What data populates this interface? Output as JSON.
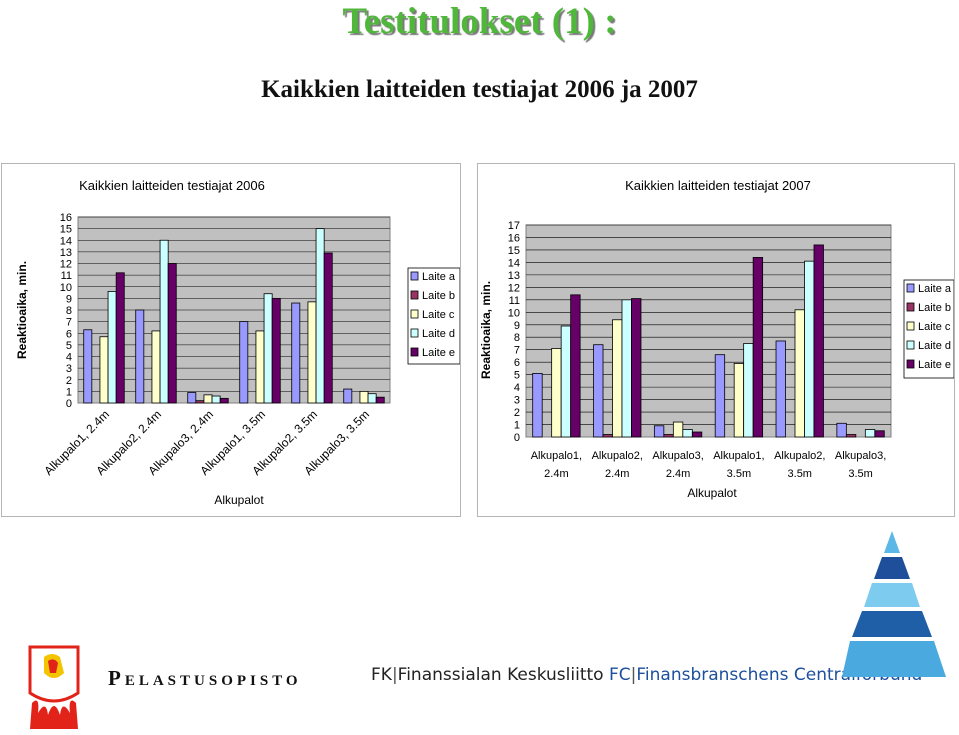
{
  "title": "Testitulokset (1) :",
  "subtitle": "Kaikkien laitteiden testiajat 2006 ja 2007",
  "series_colors": [
    "#9999ff",
    "#993366",
    "#ffffcc",
    "#ccffff",
    "#660066"
  ],
  "chart_data": [
    {
      "type": "bar",
      "title": "Kaikkien laitteiden testiajat 2006",
      "xlabel": "Alkupalot",
      "ylabel": "Reaktioaika, min.",
      "ylim": [
        0,
        16
      ],
      "yticks": [
        "0",
        "1",
        "2",
        "3",
        "4",
        "5",
        "6",
        "7",
        "8",
        "9",
        "10",
        "11",
        "12",
        "13",
        "14",
        "15",
        "16"
      ],
      "categories": [
        "Alkupalo1, 2.4m",
        "Alkupalo2, 2.4m",
        "Alkupalo3, 2.4m",
        "Alkupalo1, 3.5m",
        "Alkupalo2, 3.5m",
        "Alkupalo3, 3.5m"
      ],
      "legend_position": "right",
      "series": [
        {
          "name": "Laite a",
          "values": [
            6.3,
            8.0,
            0.9,
            7.0,
            8.6,
            1.2
          ]
        },
        {
          "name": "Laite b",
          "values": [
            0,
            0,
            0.2,
            0,
            0,
            0
          ]
        },
        {
          "name": "Laite c",
          "values": [
            5.7,
            6.2,
            0.7,
            6.2,
            8.7,
            1.0
          ]
        },
        {
          "name": "Laite d",
          "values": [
            9.6,
            14.0,
            0.6,
            9.4,
            15.0,
            0.8
          ]
        },
        {
          "name": "Laite e",
          "values": [
            11.2,
            12.0,
            0.4,
            9.0,
            12.9,
            0.5
          ]
        }
      ]
    },
    {
      "type": "bar",
      "title": "Kaikkien laitteiden testiajat 2007",
      "xlabel": "Alkupalot",
      "ylabel": "Reaktioaika, min.",
      "ylim": [
        0,
        17
      ],
      "yticks": [
        "0",
        "1",
        "2",
        "3",
        "4",
        "5",
        "6",
        "7",
        "8",
        "9",
        "10",
        "11",
        "12",
        "13",
        "14",
        "15",
        "16",
        "17"
      ],
      "categories": [
        "Alkupalo1, 2.4m",
        "Alkupalo2, 2.4m",
        "Alkupalo3, 2.4m",
        "Alkupalo1, 3.5m",
        "Alkupalo2, 3.5m",
        "Alkupalo3, 3.5m"
      ],
      "category_lines": [
        [
          "Alkupalo1,",
          "2.4m"
        ],
        [
          "Alkupalo2,",
          "2.4m"
        ],
        [
          "Alkupalo3,",
          "2.4m"
        ],
        [
          "Alkupalo1,",
          "3.5m"
        ],
        [
          "Alkupalo2,",
          "3.5m"
        ],
        [
          "Alkupalo3,",
          "3.5m"
        ]
      ],
      "legend_position": "right",
      "series": [
        {
          "name": "Laite a",
          "values": [
            5.1,
            7.4,
            0.9,
            6.6,
            7.7,
            1.1
          ]
        },
        {
          "name": "Laite b",
          "values": [
            0,
            0.2,
            0.2,
            0,
            0,
            0.2
          ]
        },
        {
          "name": "Laite c",
          "values": [
            7.1,
            9.4,
            1.2,
            5.9,
            10.2,
            0
          ]
        },
        {
          "name": "Laite d",
          "values": [
            8.9,
            11.0,
            0.6,
            7.5,
            14.1,
            0.6
          ]
        },
        {
          "name": "Laite e",
          "values": [
            11.4,
            11.1,
            0.4,
            14.4,
            15.4,
            0.5
          ]
        }
      ]
    }
  ],
  "logos": {
    "pelastusopisto": "Pelastusopisto",
    "fk_short": "FK",
    "fk_name": "Finanssialan Keskusliitto",
    "fc_short": "FC",
    "fc_name": "Finansbranschens Centralförbund"
  }
}
